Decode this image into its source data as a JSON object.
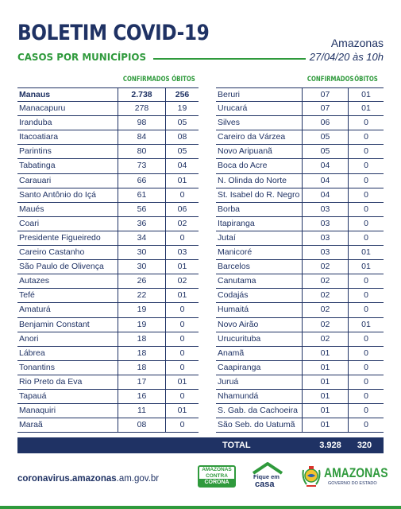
{
  "header": {
    "title": "BOLETIM COVID-19",
    "subtitle": "CASOS POR MUNICÍPIOS",
    "state": "Amazonas",
    "date": "27/04/20 às 10h"
  },
  "columns": {
    "confirmed": "CONFIRMADOS",
    "deaths": "ÓBITOS"
  },
  "left_table": [
    {
      "name": "Manaus",
      "confirmed": "2.738",
      "deaths": "256"
    },
    {
      "name": "Manacapuru",
      "confirmed": "278",
      "deaths": "19"
    },
    {
      "name": "Iranduba",
      "confirmed": "98",
      "deaths": "05"
    },
    {
      "name": "Itacoatiara",
      "confirmed": "84",
      "deaths": "08"
    },
    {
      "name": "Parintins",
      "confirmed": "80",
      "deaths": "05"
    },
    {
      "name": "Tabatinga",
      "confirmed": "73",
      "deaths": "04"
    },
    {
      "name": "Carauari",
      "confirmed": "66",
      "deaths": "01"
    },
    {
      "name": "Santo Antônio do Içá",
      "confirmed": "61",
      "deaths": "0"
    },
    {
      "name": "Maués",
      "confirmed": "56",
      "deaths": "06"
    },
    {
      "name": "Coari",
      "confirmed": "36",
      "deaths": "02"
    },
    {
      "name": "Presidente Figueiredo",
      "confirmed": "34",
      "deaths": "0"
    },
    {
      "name": "Careiro Castanho",
      "confirmed": "30",
      "deaths": "03"
    },
    {
      "name": "São Paulo de Olivença",
      "confirmed": "30",
      "deaths": "01"
    },
    {
      "name": "Autazes",
      "confirmed": "26",
      "deaths": "02"
    },
    {
      "name": "Tefé",
      "confirmed": "22",
      "deaths": "01"
    },
    {
      "name": "Amaturá",
      "confirmed": "19",
      "deaths": "0"
    },
    {
      "name": "Benjamin Constant",
      "confirmed": "19",
      "deaths": "0"
    },
    {
      "name": "Anori",
      "confirmed": "18",
      "deaths": "0"
    },
    {
      "name": "Lábrea",
      "confirmed": "18",
      "deaths": "0"
    },
    {
      "name": "Tonantins",
      "confirmed": "18",
      "deaths": "0"
    },
    {
      "name": "Rio Preto da Eva",
      "confirmed": "17",
      "deaths": "01"
    },
    {
      "name": "Tapauá",
      "confirmed": "16",
      "deaths": "0"
    },
    {
      "name": "Manaquiri",
      "confirmed": "11",
      "deaths": "01"
    },
    {
      "name": "Maraã",
      "confirmed": "08",
      "deaths": "0"
    }
  ],
  "right_table": [
    {
      "name": "Beruri",
      "confirmed": "07",
      "deaths": "01"
    },
    {
      "name": "Urucará",
      "confirmed": "07",
      "deaths": "01"
    },
    {
      "name": "Silves",
      "confirmed": "06",
      "deaths": "0"
    },
    {
      "name": "Careiro da Várzea",
      "confirmed": "05",
      "deaths": "0"
    },
    {
      "name": "Novo Aripuanã",
      "confirmed": "05",
      "deaths": "0"
    },
    {
      "name": "Boca do Acre",
      "confirmed": "04",
      "deaths": "0"
    },
    {
      "name": "N. Olinda do Norte",
      "confirmed": "04",
      "deaths": "0"
    },
    {
      "name": "St. Isabel do R. Negro",
      "confirmed": "04",
      "deaths": "0"
    },
    {
      "name": "Borba",
      "confirmed": "03",
      "deaths": "0"
    },
    {
      "name": "Itapiranga",
      "confirmed": "03",
      "deaths": "0"
    },
    {
      "name": "Jutaí",
      "confirmed": "03",
      "deaths": "0"
    },
    {
      "name": "Manicoré",
      "confirmed": "03",
      "deaths": "01"
    },
    {
      "name": "Barcelos",
      "confirmed": "02",
      "deaths": "01"
    },
    {
      "name": "Canutama",
      "confirmed": "02",
      "deaths": "0"
    },
    {
      "name": "Codajás",
      "confirmed": "02",
      "deaths": "0"
    },
    {
      "name": "Humaitá",
      "confirmed": "02",
      "deaths": "0"
    },
    {
      "name": "Novo Airão",
      "confirmed": "02",
      "deaths": "01"
    },
    {
      "name": "Urucurituba",
      "confirmed": "02",
      "deaths": "0"
    },
    {
      "name": "Anamã",
      "confirmed": "01",
      "deaths": "0"
    },
    {
      "name": "Caapiranga",
      "confirmed": "01",
      "deaths": "0"
    },
    {
      "name": "Juruá",
      "confirmed": "01",
      "deaths": "0"
    },
    {
      "name": "Nhamundá",
      "confirmed": "01",
      "deaths": "0"
    },
    {
      "name": "S. Gab. da Cachoeira",
      "confirmed": "01",
      "deaths": "0"
    },
    {
      "name": "São Seb. do Uatumã",
      "confirmed": "01",
      "deaths": "0"
    }
  ],
  "total": {
    "label": "TOTAL",
    "confirmed": "3.928",
    "deaths": "320"
  },
  "footer": {
    "url_bold": "coronavirus.amazonas",
    "url_rest": ".am.gov.br",
    "logo_contra": {
      "line1": "AMAZONAS",
      "line2": "CONTRA",
      "line3": "CORONA"
    },
    "logo_casa": {
      "line1": "Fique em",
      "line2": "casa"
    },
    "logo_state": {
      "name": "AMAZONAS",
      "tagline": "GOVERNO DO ESTADO"
    }
  },
  "colors": {
    "navy": "#1f3264",
    "green": "#2f9a3c"
  },
  "icons": [
    "house-icon",
    "coat-of-arms-icon"
  ]
}
